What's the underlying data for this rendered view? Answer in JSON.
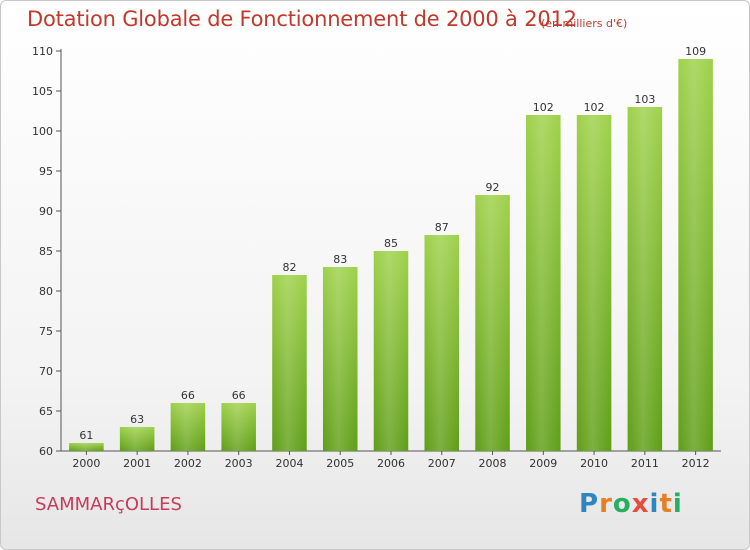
{
  "title": "Dotation Globale de Fonctionnement de 2000 à 2012",
  "subtitle": "(en milliers d'€)",
  "commune": "SAMMARçOLLES",
  "logo": {
    "letters": [
      "P",
      "r",
      "o",
      "x",
      "i",
      "t",
      "i"
    ],
    "colors": [
      "#2e86c1",
      "#e67e22",
      "#27ae60",
      "#e74c3c",
      "#2e86c1",
      "#e67e22",
      "#27ae60"
    ]
  },
  "colors": {
    "bar_top": "#9ed14a",
    "bar_bottom": "#5f9e16",
    "title": "#c0392b",
    "commune": "#c83a5a"
  },
  "chart_data": {
    "type": "bar",
    "title": "Dotation Globale de Fonctionnement de 2000 à 2012",
    "categories": [
      "2000",
      "2001",
      "2002",
      "2003",
      "2004",
      "2005",
      "2006",
      "2007",
      "2008",
      "2009",
      "2010",
      "2011",
      "2012"
    ],
    "values": [
      61,
      63,
      66,
      66,
      82,
      83,
      85,
      87,
      92,
      102,
      102,
      103,
      109
    ],
    "ylim": [
      60,
      110
    ],
    "yticks": [
      60,
      65,
      70,
      75,
      80,
      85,
      90,
      95,
      100,
      105,
      110
    ],
    "grid": false
  }
}
